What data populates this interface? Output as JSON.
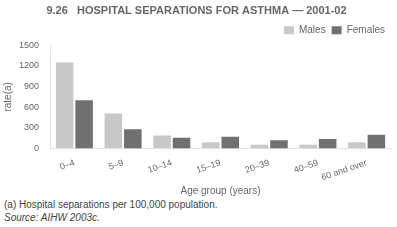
{
  "chart_data": {
    "type": "bar",
    "title": "9.26   HOSPITAL SEPARATIONS FOR ASTHMA — 2001-02",
    "categories": [
      "0–4",
      "5–9",
      "10–14",
      "15–19",
      "20–39",
      "40–59",
      "60 and over"
    ],
    "series": [
      {
        "name": "Males",
        "color": "#c8c8c8",
        "values": [
          1250,
          510,
          190,
          90,
          55,
          55,
          90
        ]
      },
      {
        "name": "Females",
        "color": "#707070",
        "values": [
          700,
          280,
          155,
          170,
          120,
          140,
          200
        ]
      }
    ],
    "x_label": "Age group (years)",
    "y_label": "rate(a)",
    "ylim": [
      0,
      1500
    ],
    "yticks": [
      0,
      300,
      600,
      900,
      1200,
      1500
    ],
    "grid": false,
    "legend": "upper right",
    "annotations": [
      "(a) Hospital separations per 100,000 population.",
      "Source: AIHW 2003c."
    ]
  }
}
